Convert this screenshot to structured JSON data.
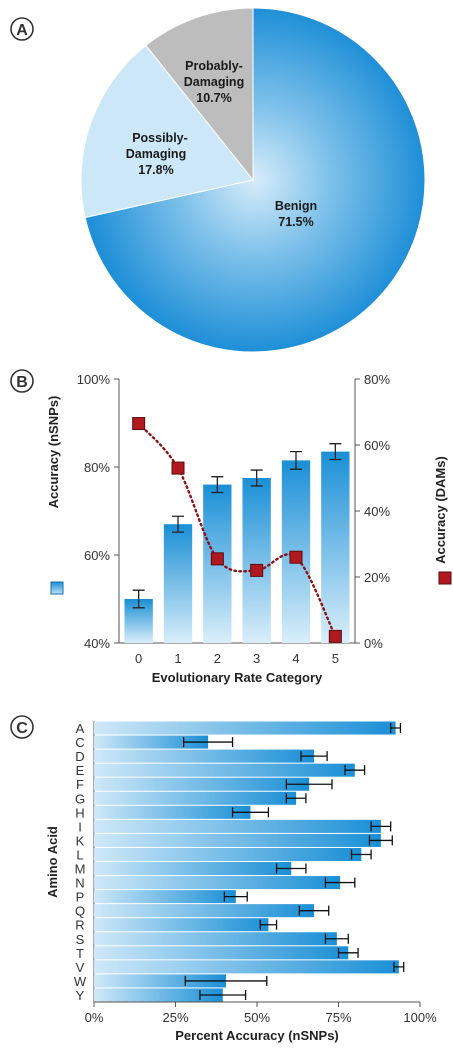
{
  "panels": [
    {
      "letter": "A"
    },
    {
      "letter": "B"
    },
    {
      "letter": "C"
    }
  ],
  "colors": {
    "bar_dark": "#1a8fd6",
    "bar_light": "#cfe8f8",
    "pie_benign": "#1f8fd7",
    "pie_possibly": "#cce8f8",
    "pie_probably": "#bdbdbd",
    "dam_marker": "#b01a1f",
    "dam_line": "#8a1216"
  },
  "chart_data": [
    {
      "type": "pie",
      "slices": [
        {
          "line1": "Benign",
          "line2": "71.5%",
          "value": 71.5
        },
        {
          "line1": "Possibly-",
          "line2": "Damaging",
          "line3": "17.8%",
          "value": 17.8
        },
        {
          "line1": "Probably-",
          "line2": "Damaging",
          "line3": "10.7%",
          "value": 10.7
        }
      ]
    },
    {
      "type": "bar",
      "xlabel": "Evolutionary Rate Category",
      "ylabel_left": "Accuracy (nSNPs)",
      "ylabel_right": "Accuracy (DAMs)",
      "categories": [
        "0",
        "1",
        "2",
        "3",
        "4",
        "5"
      ],
      "ylim_left": [
        40,
        100
      ],
      "ylim_right": [
        0,
        80
      ],
      "yticks_left": [
        "40%",
        "60%",
        "80%",
        "100%"
      ],
      "yticks_right": [
        "0%",
        "20%",
        "40%",
        "60%",
        "80%"
      ],
      "series": [
        {
          "type": "bar",
          "axis": "left",
          "values": [
            50,
            67,
            76,
            77.5,
            81.5,
            83.5
          ],
          "errors": [
            2,
            1.8,
            1.8,
            1.8,
            2,
            1.8
          ]
        },
        {
          "type": "line",
          "axis": "right",
          "values": [
            66.5,
            53,
            25.5,
            22,
            26,
            2
          ]
        }
      ]
    },
    {
      "type": "bar",
      "orientation": "horizontal",
      "xlabel": "Percent Accuracy (nSNPs)",
      "ylabel": "Amino Acid",
      "xlim": [
        0,
        100
      ],
      "xticks": [
        "0%",
        "25%",
        "50%",
        "75%",
        "100%"
      ],
      "categories": [
        "A",
        "C",
        "D",
        "E",
        "F",
        "G",
        "H",
        "I",
        "K",
        "L",
        "M",
        "N",
        "P",
        "Q",
        "R",
        "S",
        "T",
        "V",
        "W",
        "Y"
      ],
      "values": [
        92.5,
        35,
        67.5,
        80,
        66,
        62,
        48,
        88,
        88,
        82,
        60.5,
        75.5,
        43.5,
        67.5,
        53.5,
        74.5,
        78,
        93.5,
        40.5,
        39.5
      ],
      "errors": [
        1.5,
        7.5,
        4,
        3,
        7,
        3,
        5.5,
        3,
        3.5,
        3,
        4.5,
        4.5,
        3.5,
        4.5,
        2.5,
        3.5,
        3,
        1.5,
        12.5,
        7
      ]
    }
  ]
}
